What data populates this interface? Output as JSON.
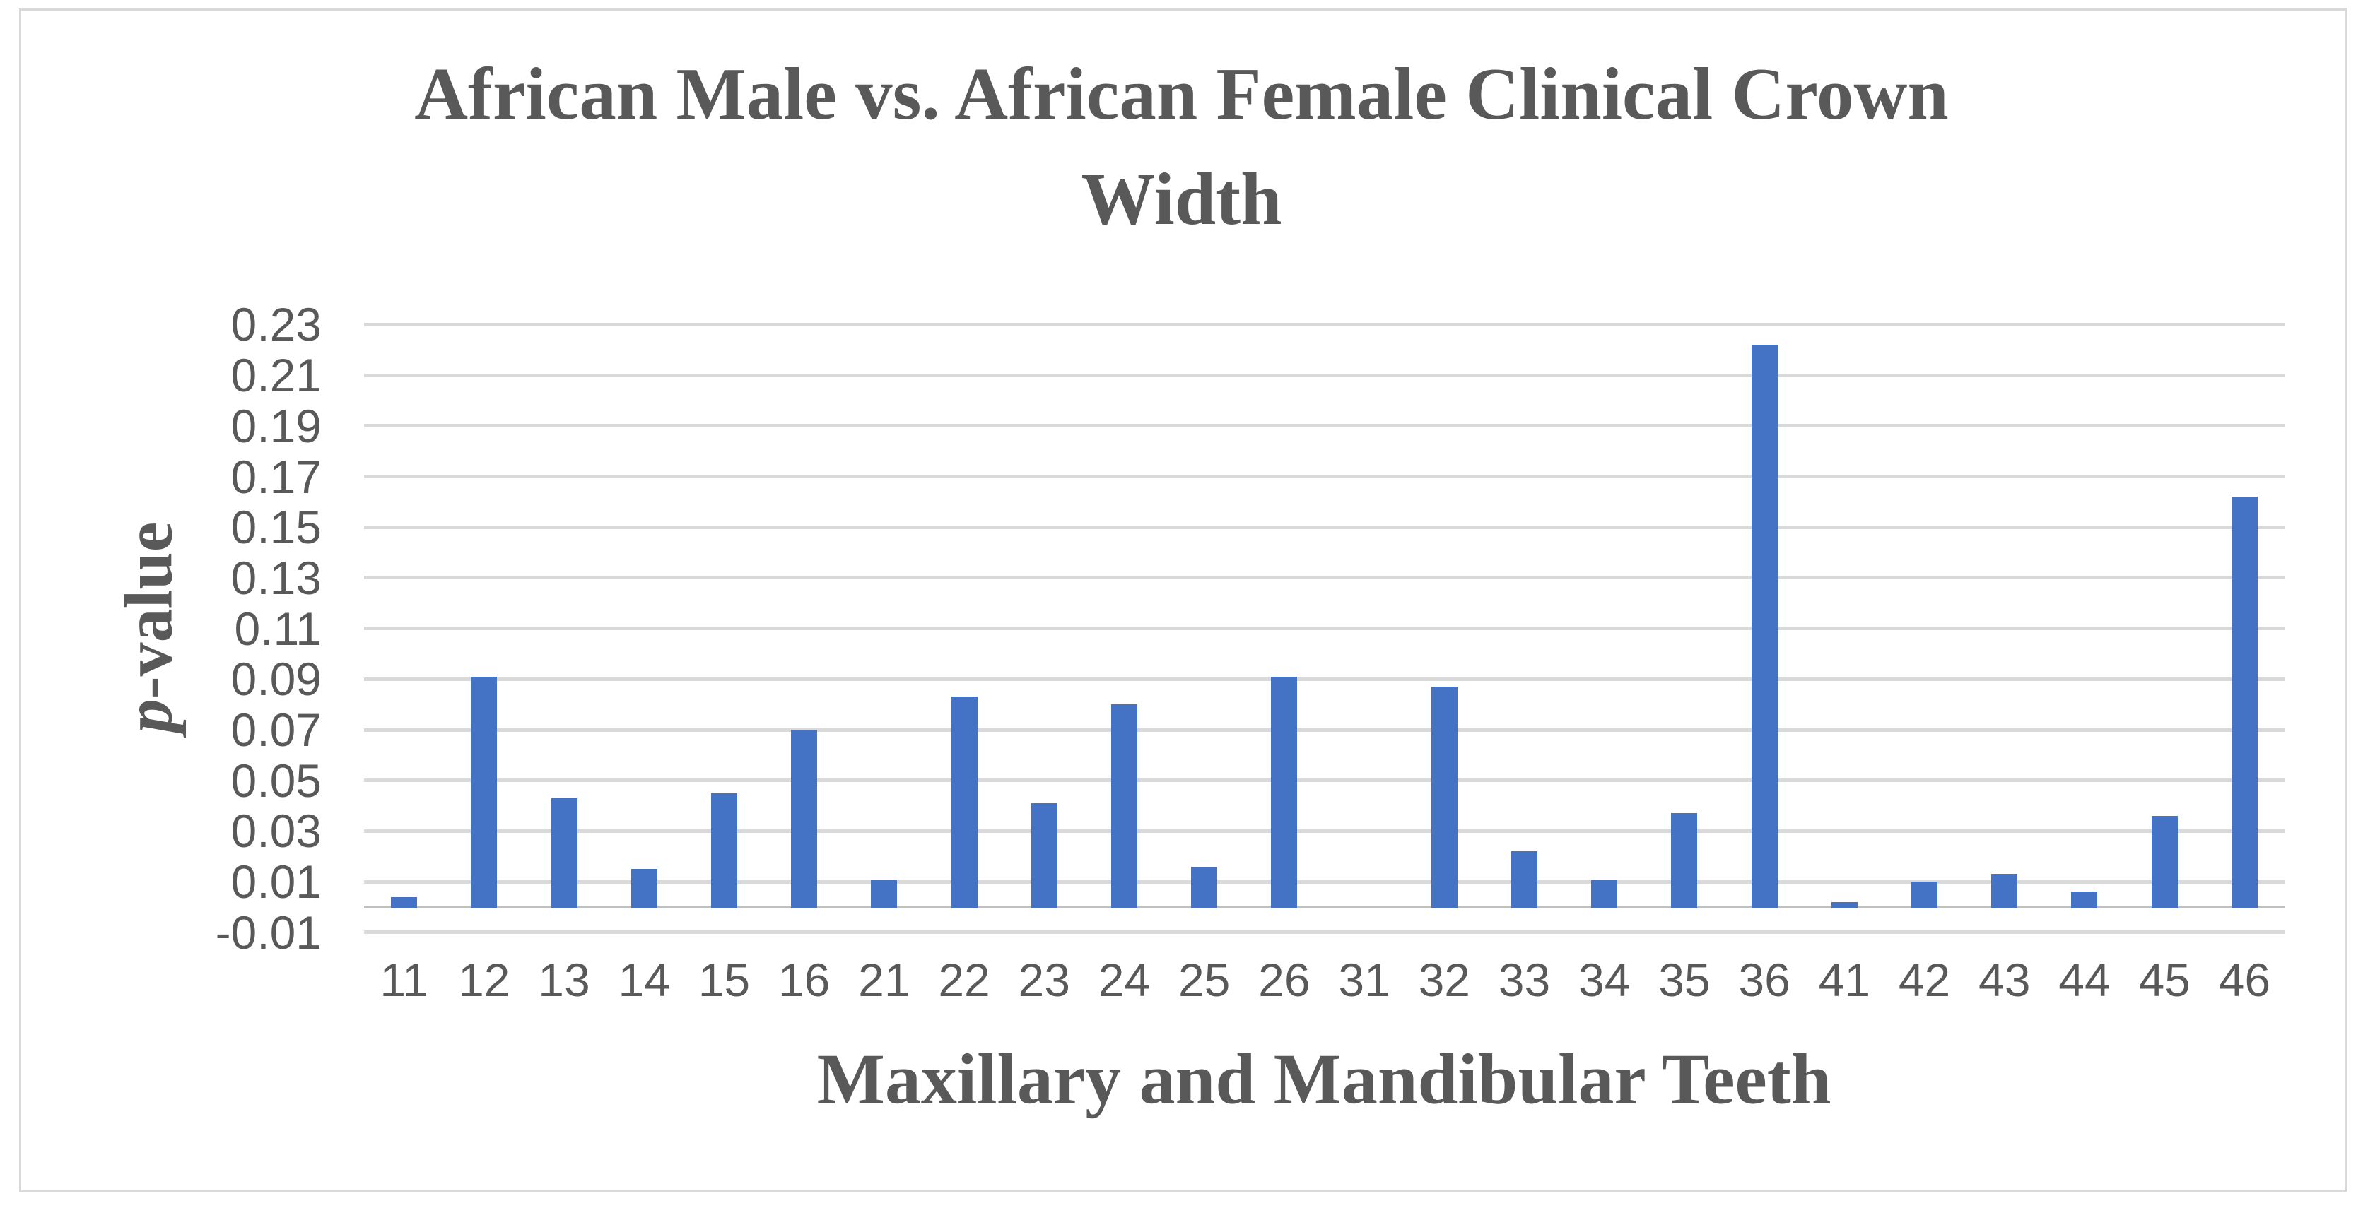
{
  "chart_data": {
    "type": "bar",
    "title": "African Male vs. African Female Clinical Crown Width",
    "title_lines": [
      "African Male vs. African Female Clinical Crown",
      "Width"
    ],
    "xlabel": "Maxillary and Mandibular Teeth",
    "ylabel": "p-value",
    "ylabel_italic_part": "p",
    "ylabel_rest": "-value",
    "categories": [
      "11",
      "12",
      "13",
      "14",
      "15",
      "16",
      "21",
      "22",
      "23",
      "24",
      "25",
      "26",
      "31",
      "32",
      "33",
      "34",
      "35",
      "36",
      "41",
      "42",
      "43",
      "44",
      "45",
      "46"
    ],
    "values": [
      0.004,
      0.091,
      0.043,
      0.015,
      0.045,
      0.07,
      0.011,
      0.083,
      0.041,
      0.08,
      0.016,
      0.091,
      0,
      0.087,
      0.022,
      0.011,
      0.037,
      0.222,
      0.002,
      0.01,
      0.013,
      0.006,
      0.036,
      0.162
    ],
    "ylim": [
      -0.01,
      0.23
    ],
    "y_tick_step": 0.02,
    "y_ticks": [
      -0.01,
      0.01,
      0.03,
      0.05,
      0.07,
      0.09,
      0.11,
      0.13,
      0.15,
      0.17,
      0.19,
      0.21,
      0.23
    ],
    "grid": true,
    "legend": false,
    "series_count": 1,
    "bar_color": "#4472C4",
    "gridline_color": "#D9D9D9",
    "axis_line_color": "#BFBFBF",
    "text_color": "#595959",
    "border_color": "#D9D9D9"
  }
}
